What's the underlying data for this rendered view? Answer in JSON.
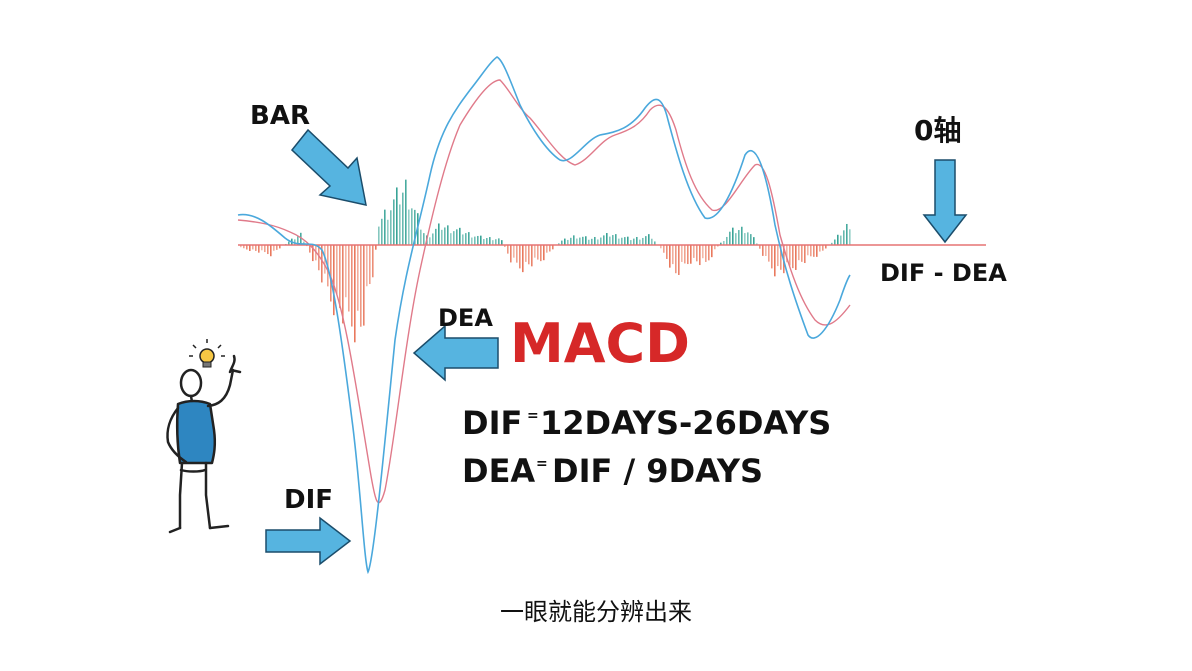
{
  "labels": {
    "bar": "BAR",
    "zero_axis": "0轴",
    "dif_minus_dea": "DIF - DEA",
    "dea": "DEA",
    "dif": "DIF",
    "macd": "MACD"
  },
  "formulas": {
    "dif_label": "DIF",
    "dif_expr": "12DAYS-26DAYS",
    "dea_label": "DEA",
    "dea_expr": "DIF / 9DAYS"
  },
  "subtitle": "一眼就能分辨出来",
  "colors": {
    "dif_line": "#4aa8dc",
    "dea_line": "#e07a8a",
    "bar_positive": "#2a9d8f",
    "bar_negative": "#e76f51",
    "arrow_fill": "#56b4e0",
    "macd_text": "#d62828"
  },
  "icons": {
    "figure": "person-pointing-icon",
    "idea": "lightbulb-icon"
  }
}
